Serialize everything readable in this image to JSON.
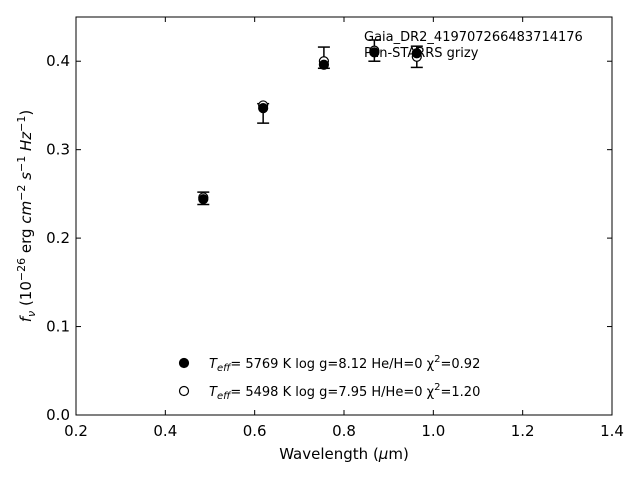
{
  "chart_data": {
    "type": "scatter",
    "xlabel": "Wavelength (μm)",
    "ylabel": "f_ν (10^−26 erg cm^−2 s^−1 Hz^−1)",
    "xlim": [
      0.2,
      1.4
    ],
    "ylim": [
      0.0,
      0.45
    ],
    "x_ticks": [
      0.2,
      0.4,
      0.6,
      0.8,
      1.0,
      1.2,
      1.4
    ],
    "x_tick_labels": [
      "0.2",
      "0.4",
      "0.6",
      "0.8",
      "1.0",
      "1.2",
      "1.4"
    ],
    "y_ticks": [
      0.0,
      0.1,
      0.2,
      0.3,
      0.4
    ],
    "y_tick_labels": [
      "0.0",
      "0.1",
      "0.2",
      "0.3",
      "0.4"
    ],
    "grid": false,
    "annotations": [
      "Gaia_DR2_419707266483714176",
      "Pan-STARRS grizy"
    ],
    "observed": {
      "x": [
        0.485,
        0.619,
        0.755,
        0.868,
        0.963
      ],
      "y": [
        0.245,
        0.341,
        0.404,
        0.412,
        0.405
      ],
      "yerr": [
        0.007,
        0.011,
        0.012,
        0.012,
        0.012
      ]
    },
    "series": [
      {
        "marker": "filled",
        "x": [
          0.485,
          0.619,
          0.755,
          0.868,
          0.963
        ],
        "y": [
          0.244,
          0.347,
          0.396,
          0.41,
          0.409
        ],
        "legend": {
          "teff_label": "T",
          "teff_sub": "eff",
          "rest": "=  5769 K  log g=8.12  He/H=0  χ",
          "chi_sup": "2",
          "chi_val": "=0.92"
        }
      },
      {
        "marker": "open",
        "x": [
          0.485,
          0.619,
          0.755,
          0.868,
          0.963
        ],
        "y": [
          0.246,
          0.35,
          0.4,
          0.412,
          0.405
        ],
        "legend": {
          "teff_label": "T",
          "teff_sub": "eff",
          "rest": "=  5498 K  log g=7.95  H/He=0  χ",
          "chi_sup": "2",
          "chi_val": "=1.20"
        }
      }
    ]
  }
}
